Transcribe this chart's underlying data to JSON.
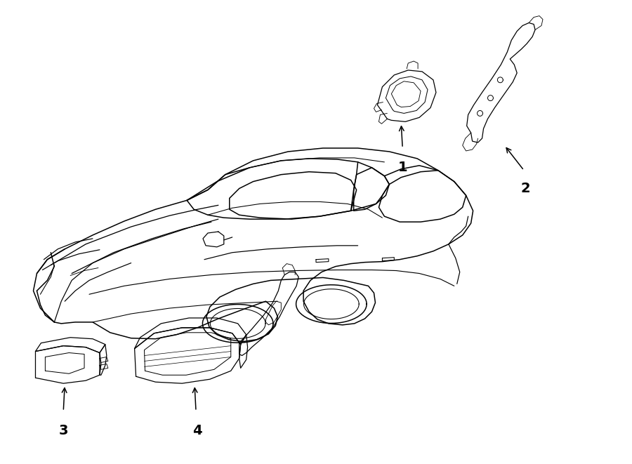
{
  "bg_color": "#ffffff",
  "line_color": "#000000",
  "fig_width": 9.0,
  "fig_height": 6.61,
  "dpi": 100,
  "car_lw": 1.1,
  "part_lw": 0.9,
  "arrow_lw": 1.1
}
